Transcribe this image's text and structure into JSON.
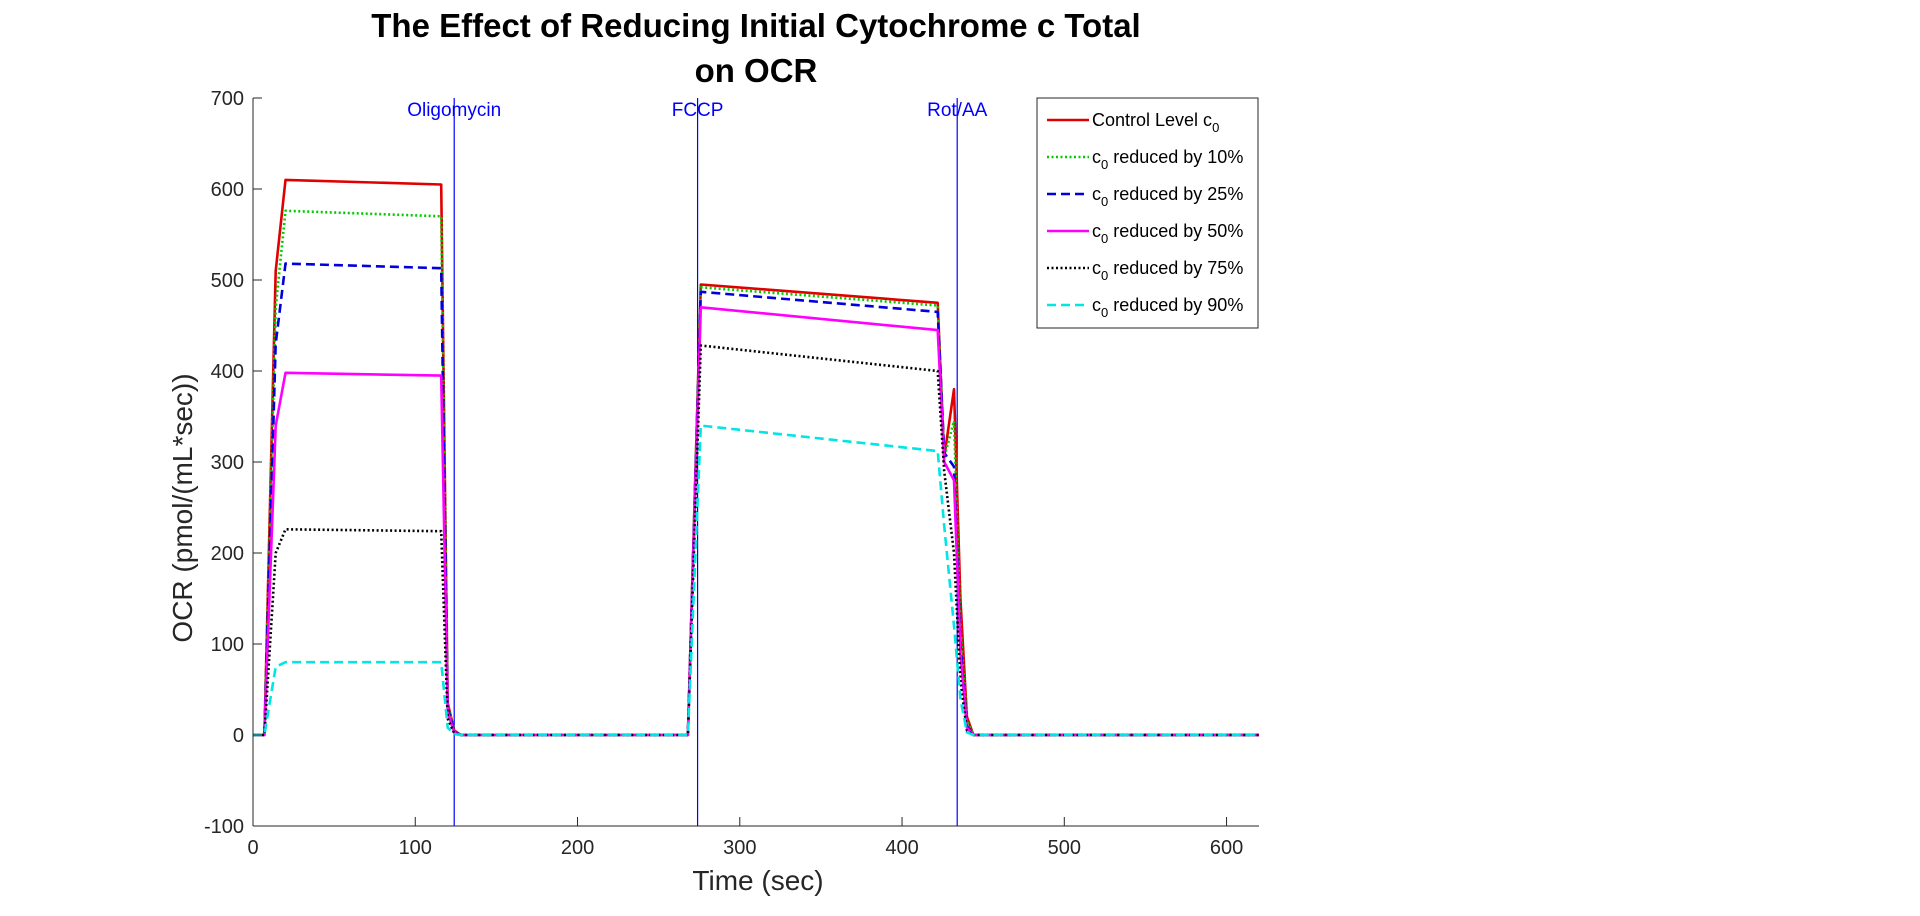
{
  "chart_data": {
    "type": "line",
    "title": [
      "The Effect of Reducing Initial Cytochrome c Total",
      "on OCR"
    ],
    "xlabel": "Time (sec)",
    "ylabel": "OCR (pmol/(mL*sec))",
    "xlim": [
      0,
      620
    ],
    "ylim": [
      -100,
      700
    ],
    "xticks": [
      0,
      100,
      200,
      300,
      400,
      500,
      600
    ],
    "yticks": [
      -100,
      0,
      100,
      200,
      300,
      400,
      500,
      600,
      700
    ],
    "grid": false,
    "legend_position": "top-right",
    "events": [
      {
        "label": "Oligomycin",
        "x": 124
      },
      {
        "label": "FCCP",
        "x": 274
      },
      {
        "label": "Rot/AA",
        "x": 434
      }
    ],
    "series": [
      {
        "name": "Control Level c0",
        "legend": {
          "pre": "Control Level c",
          "sub": "0",
          "post": ""
        },
        "color": "#e00000",
        "dash": "solid",
        "x": [
          0,
          7,
          14,
          20,
          116,
          120,
          124,
          128,
          268,
          276,
          422,
          426,
          432,
          436,
          440,
          444,
          620
        ],
        "y": [
          0,
          0,
          510,
          610,
          605,
          35,
          5,
          0,
          0,
          495,
          475,
          305,
          380,
          150,
          20,
          0,
          0
        ]
      },
      {
        "name": "c0 reduced by 10%",
        "legend": {
          "pre": "c",
          "sub": "0",
          "post": " reduced by 10%"
        },
        "color": "#00cc00",
        "dash": "dotted",
        "x": [
          0,
          7,
          14,
          20,
          116,
          120,
          124,
          128,
          268,
          276,
          422,
          426,
          432,
          436,
          440,
          444,
          620
        ],
        "y": [
          0,
          0,
          470,
          576,
          570,
          33,
          5,
          0,
          0,
          492,
          472,
          305,
          345,
          120,
          15,
          0,
          0
        ]
      },
      {
        "name": "c0 reduced by 25%",
        "legend": {
          "pre": "c",
          "sub": "0",
          "post": " reduced by 25%"
        },
        "color": "#0000dd",
        "dash": "dashed",
        "x": [
          0,
          7,
          14,
          20,
          116,
          120,
          124,
          128,
          268,
          276,
          422,
          426,
          432,
          436,
          440,
          444,
          620
        ],
        "y": [
          0,
          0,
          430,
          518,
          513,
          30,
          4,
          0,
          0,
          487,
          465,
          310,
          295,
          100,
          10,
          0,
          0
        ]
      },
      {
        "name": "c0 reduced by 50%",
        "legend": {
          "pre": "c",
          "sub": "0",
          "post": " reduced by 50%"
        },
        "color": "#ff00ff",
        "dash": "solid",
        "x": [
          0,
          7,
          14,
          20,
          116,
          120,
          124,
          128,
          268,
          276,
          422,
          426,
          432,
          436,
          440,
          444,
          620
        ],
        "y": [
          0,
          0,
          340,
          398,
          395,
          25,
          3,
          0,
          0,
          470,
          445,
          300,
          280,
          90,
          8,
          0,
          0
        ]
      },
      {
        "name": "c0 reduced by 75%",
        "legend": {
          "pre": "c",
          "sub": "0",
          "post": " reduced by 75%"
        },
        "color": "#000000",
        "dash": "dotted",
        "x": [
          0,
          7,
          14,
          20,
          116,
          120,
          124,
          128,
          268,
          276,
          422,
          426,
          432,
          436,
          440,
          444,
          620
        ],
        "y": [
          0,
          0,
          200,
          226,
          224,
          18,
          2,
          0,
          0,
          428,
          400,
          290,
          200,
          60,
          5,
          0,
          0
        ]
      },
      {
        "name": "c0 reduced by 90%",
        "legend": {
          "pre": "c",
          "sub": "0",
          "post": " reduced by 90%"
        },
        "color": "#00e5e5",
        "dash": "dashed",
        "x": [
          0,
          7,
          14,
          20,
          116,
          120,
          124,
          128,
          268,
          276,
          422,
          426,
          432,
          436,
          440,
          444,
          620
        ],
        "y": [
          0,
          0,
          75,
          80,
          80,
          8,
          1,
          0,
          0,
          340,
          312,
          230,
          120,
          40,
          3,
          0,
          0
        ]
      }
    ]
  }
}
